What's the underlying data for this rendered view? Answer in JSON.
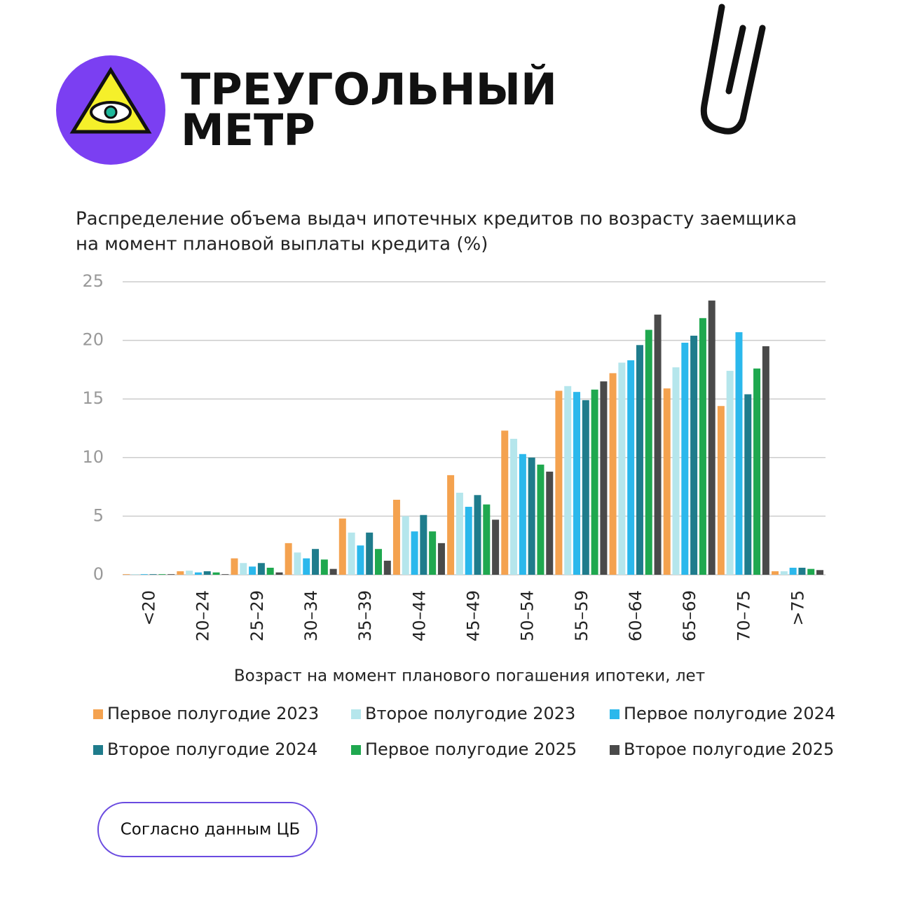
{
  "brand": {
    "line1": "ТРЕУГОЛЬНЫЙ",
    "line2": "МЕТР"
  },
  "chart_data": {
    "type": "bar",
    "title_line1": "Распределение объема выдач ипотечных кредитов по возрасту заемщика",
    "title_line2": "на момент плановой выплаты кредита (%)",
    "x_label": "Возраст на момент планового погашения ипотеки, лет",
    "categories": [
      "<20",
      "20–24",
      "25–29",
      "30–34",
      "35–39",
      "40–44",
      "45–49",
      "50–54",
      "55–59",
      "60–64",
      "65–69",
      "70–75",
      ">75"
    ],
    "ylim": [
      0,
      25
    ],
    "yticks": [
      0,
      5,
      10,
      15,
      20,
      25
    ],
    "grid": true,
    "series": [
      {
        "name": "Первое полугодие 2023",
        "color": "#f4a24f",
        "values": [
          0.05,
          0.3,
          1.4,
          2.7,
          4.8,
          6.4,
          8.5,
          12.3,
          15.7,
          17.2,
          15.9,
          14.4,
          0.3
        ]
      },
      {
        "name": "Второе полугодие 2023",
        "color": "#b5e6ec",
        "values": [
          0.05,
          0.35,
          1.0,
          1.9,
          3.6,
          5.0,
          7.0,
          11.6,
          16.1,
          18.1,
          17.7,
          17.4,
          0.3
        ]
      },
      {
        "name": "Первое полугодие 2024",
        "color": "#2bb8ec",
        "values": [
          0.05,
          0.2,
          0.7,
          1.4,
          2.5,
          3.7,
          5.8,
          10.3,
          15.6,
          18.3,
          19.8,
          20.7,
          0.6
        ]
      },
      {
        "name": "Второе полугодие 2024",
        "color": "#1f7c8c",
        "values": [
          0.05,
          0.3,
          1.0,
          2.2,
          3.6,
          5.1,
          6.8,
          10.0,
          14.9,
          19.6,
          20.4,
          15.4,
          0.6
        ]
      },
      {
        "name": "Первое полугодие 2025",
        "color": "#1fa84f",
        "values": [
          0.05,
          0.2,
          0.6,
          1.3,
          2.2,
          3.7,
          6.0,
          9.4,
          15.8,
          20.9,
          21.9,
          17.6,
          0.5
        ]
      },
      {
        "name": "Второе полугодие 2025",
        "color": "#4a4a4a",
        "values": [
          0.05,
          0.05,
          0.2,
          0.5,
          1.2,
          2.7,
          4.7,
          8.8,
          16.5,
          22.2,
          23.4,
          19.5,
          0.4
        ]
      }
    ]
  },
  "source_button": "Согласно данным ЦБ"
}
